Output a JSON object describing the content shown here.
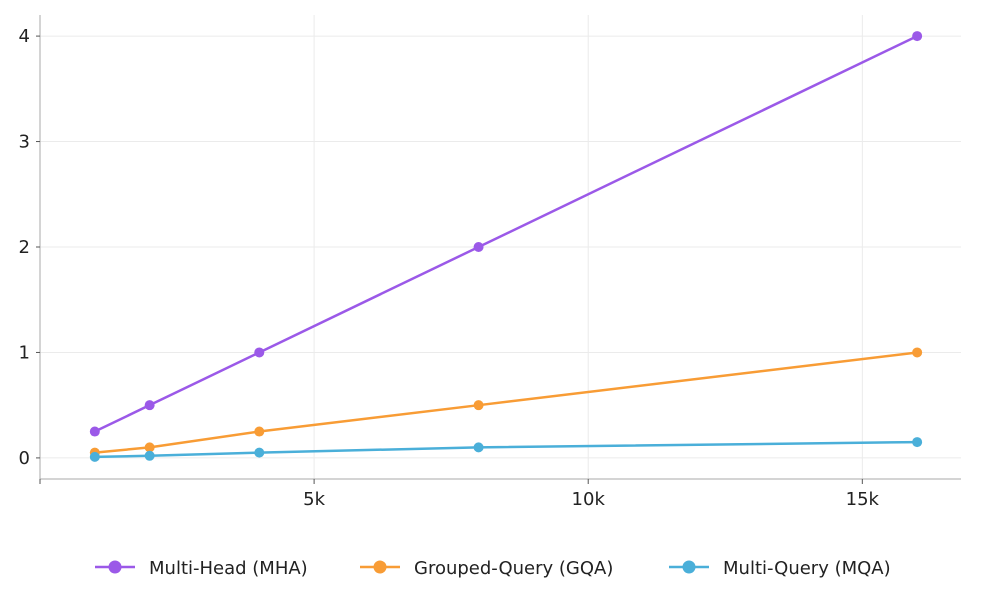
{
  "chart_data": {
    "type": "line",
    "title": "",
    "xlabel": "",
    "ylabel": "",
    "x": [
      1000,
      2000,
      4000,
      8000,
      16000
    ],
    "series": [
      {
        "name": "Multi-Head (MHA)",
        "color": "#9b59e8",
        "values": [
          0.25,
          0.5,
          1.0,
          2.0,
          4.0
        ]
      },
      {
        "name": "Grouped-Query (GQA)",
        "color": "#f89c35",
        "values": [
          0.05,
          0.1,
          0.25,
          0.5,
          1.0
        ]
      },
      {
        "name": "Multi-Query (MQA)",
        "color": "#4aafd9",
        "values": [
          0.01,
          0.02,
          0.05,
          0.1,
          0.15
        ]
      }
    ],
    "xlim": [
      0,
      16800
    ],
    "ylim": [
      -0.2,
      4.2
    ],
    "x_ticks": [
      {
        "value": 5000,
        "label": "5k"
      },
      {
        "value": 10000,
        "label": "10k"
      },
      {
        "value": 15000,
        "label": "15k"
      }
    ],
    "y_ticks": [
      {
        "value": 0,
        "label": "0"
      },
      {
        "value": 1,
        "label": "1"
      },
      {
        "value": 2,
        "label": "2"
      },
      {
        "value": 3,
        "label": "3"
      },
      {
        "value": 4,
        "label": "4"
      }
    ],
    "grid": true,
    "legend": "bottom-center"
  }
}
